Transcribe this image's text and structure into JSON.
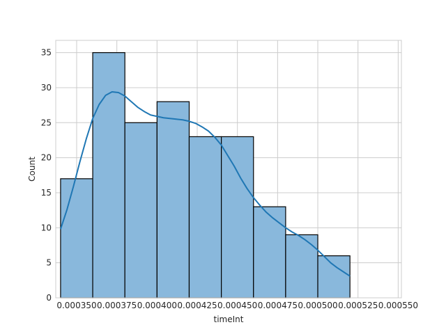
{
  "chart_data": {
    "type": "histogram",
    "title": "",
    "xlabel": "timeInt",
    "ylabel": "Count",
    "xlim": [
      0.000337,
      0.000552
    ],
    "ylim": [
      0,
      36.75
    ],
    "grid": true,
    "bins": [
      {
        "start": 0.00034,
        "end": 0.00036,
        "count": 17
      },
      {
        "start": 0.00036,
        "end": 0.00038,
        "count": 35
      },
      {
        "start": 0.00038,
        "end": 0.0004,
        "count": 25
      },
      {
        "start": 0.0004,
        "end": 0.00042,
        "count": 28
      },
      {
        "start": 0.00042,
        "end": 0.00044,
        "count": 23
      },
      {
        "start": 0.00044,
        "end": 0.00046,
        "count": 23
      },
      {
        "start": 0.00046,
        "end": 0.00048,
        "count": 13
      },
      {
        "start": 0.00048,
        "end": 0.0005,
        "count": 9
      },
      {
        "start": 0.0005,
        "end": 0.00052,
        "count": 6
      }
    ],
    "x_ticks": [
      {
        "value": 0.00035,
        "label": "0.000350"
      },
      {
        "value": 0.000375,
        "label": "0.000375"
      },
      {
        "value": 0.0004,
        "label": "0.000400"
      },
      {
        "value": 0.000425,
        "label": "0.000425"
      },
      {
        "value": 0.00045,
        "label": "0.000450"
      },
      {
        "value": 0.000475,
        "label": "0.000475"
      },
      {
        "value": 0.0005,
        "label": "0.000500"
      },
      {
        "value": 0.000525,
        "label": "0.000525"
      },
      {
        "value": 0.00055,
        "label": "0.000550"
      }
    ],
    "y_ticks": [
      {
        "value": 0,
        "label": "0"
      },
      {
        "value": 5,
        "label": "5"
      },
      {
        "value": 10,
        "label": "10"
      },
      {
        "value": 15,
        "label": "15"
      },
      {
        "value": 20,
        "label": "20"
      },
      {
        "value": 25,
        "label": "25"
      },
      {
        "value": 30,
        "label": "30"
      },
      {
        "value": 35,
        "label": "35"
      }
    ],
    "kde": {
      "x": [
        0.00034,
        0.000344,
        0.000348,
        0.000352,
        0.000356,
        0.00036,
        0.000364,
        0.000368,
        0.000372,
        0.000376,
        0.00038,
        0.000384,
        0.000388,
        0.000392,
        0.000396,
        0.0004,
        0.000404,
        0.000408,
        0.000412,
        0.000416,
        0.00042,
        0.000424,
        0.000428,
        0.000432,
        0.000436,
        0.00044,
        0.000444,
        0.000448,
        0.000452,
        0.000456,
        0.00046,
        0.000464,
        0.000468,
        0.000472,
        0.000476,
        0.00048,
        0.000484,
        0.000488,
        0.000492,
        0.000496,
        0.0005,
        0.000504,
        0.000508,
        0.000512,
        0.000516,
        0.00052
      ],
      "y": [
        9.8,
        12.6,
        15.9,
        19.4,
        22.7,
        25.6,
        27.6,
        28.9,
        29.4,
        29.3,
        28.8,
        28.0,
        27.2,
        26.6,
        26.1,
        25.9,
        25.7,
        25.6,
        25.5,
        25.4,
        25.2,
        24.9,
        24.4,
        23.8,
        22.9,
        21.8,
        20.3,
        18.8,
        17.1,
        15.6,
        14.3,
        13.2,
        12.2,
        11.4,
        10.7,
        10.0,
        9.4,
        8.9,
        8.3,
        7.6,
        6.8,
        5.9,
        5.0,
        4.3,
        3.7,
        3.1
      ]
    },
    "colors": {
      "bar_fill": "#89b8dc",
      "bar_edge": "#000000",
      "kde_line": "#1f77b4",
      "grid": "#cccccc",
      "frame": "#cccccc"
    }
  }
}
